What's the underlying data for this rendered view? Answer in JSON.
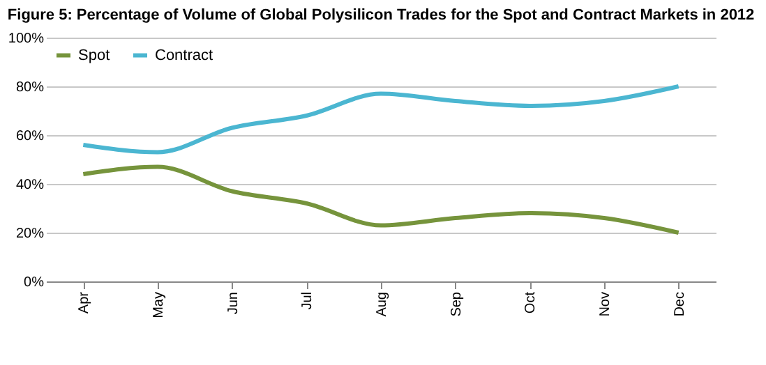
{
  "chart_data": {
    "type": "line",
    "title": "Figure 5: Percentage of Volume of Global Polysilicon Trades for the Spot and Contract Markets in 2012",
    "categories": [
      "Apr",
      "May",
      "Jun",
      "Jul",
      "Aug",
      "Sep",
      "Oct",
      "Nov",
      "Dec"
    ],
    "series": [
      {
        "name": "Spot",
        "color": "#76943c",
        "values": [
          44,
          47,
          37,
          32,
          23,
          26,
          28,
          26,
          20
        ]
      },
      {
        "name": "Contract",
        "color": "#4bb6d1",
        "values": [
          56,
          53,
          63,
          68,
          77,
          74,
          72,
          74,
          80
        ]
      }
    ],
    "ylim": [
      0,
      100
    ],
    "yticks": [
      {
        "value": 0,
        "label": "0%"
      },
      {
        "value": 20,
        "label": "20%"
      },
      {
        "value": 40,
        "label": "40%"
      },
      {
        "value": 60,
        "label": "60%"
      },
      {
        "value": 80,
        "label": "80%"
      },
      {
        "value": 100,
        "label": "100%"
      }
    ],
    "grid": "y",
    "legend": "top left",
    "marker": "none",
    "line_style": "solid"
  }
}
